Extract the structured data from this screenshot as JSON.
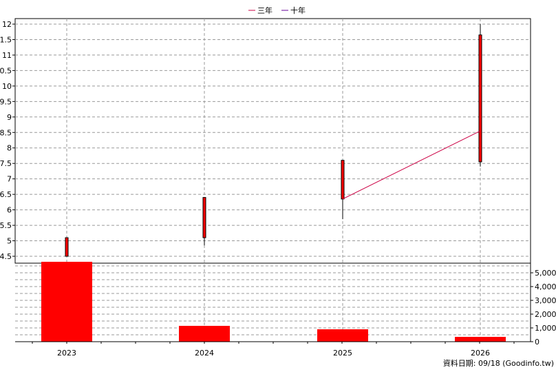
{
  "legend": {
    "series3": "三年",
    "series10": "十年"
  },
  "footer": {
    "label": "資料日期: 09/18  (Goodinfo.tw)"
  },
  "colors": {
    "candle": "#ff0000",
    "candleEdge": "#000000",
    "line3": "#cc0044",
    "line10": "#660099",
    "volume": "#ff0000",
    "grid": "#999999"
  },
  "chart_data": [
    {
      "type": "candlestick",
      "categories": [
        "2023",
        "2024",
        "2025",
        "2026"
      ],
      "ylim": [
        4.2,
        12.1
      ],
      "yticks": [
        "4.5",
        "5",
        "5.5",
        "6",
        "6.5",
        "7",
        "7.5",
        "8",
        "8.5",
        "9",
        "9.5",
        "10",
        "10.5",
        "11",
        "11.5",
        "12"
      ],
      "grid": true,
      "ohlc": [
        {
          "x": "2023",
          "open": 4.5,
          "close": 5.1,
          "high": 5.1,
          "low": 4.5
        },
        {
          "x": "2024",
          "open": 5.1,
          "close": 6.4,
          "high": 6.4,
          "low": 4.85
        },
        {
          "x": "2025",
          "open": 6.35,
          "close": 7.6,
          "high": 7.6,
          "low": 5.7
        },
        {
          "x": "2026",
          "open": 7.55,
          "close": 11.65,
          "high": 12.0,
          "low": 7.4
        }
      ],
      "series": [
        {
          "name": "三年",
          "points": [
            {
              "x": "2025",
              "y": 6.35
            },
            {
              "x": "2026",
              "y": 8.55
            }
          ]
        },
        {
          "name": "十年",
          "points": []
        }
      ]
    },
    {
      "type": "bar",
      "categories": [
        "2023",
        "2024",
        "2025",
        "2026"
      ],
      "values": [
        5800,
        1150,
        900,
        350
      ],
      "ylim": [
        0,
        5800
      ],
      "yticks": [
        "0",
        "1,000",
        "2,000",
        "3,000",
        "4,000",
        "5,000"
      ],
      "grid": true
    }
  ]
}
